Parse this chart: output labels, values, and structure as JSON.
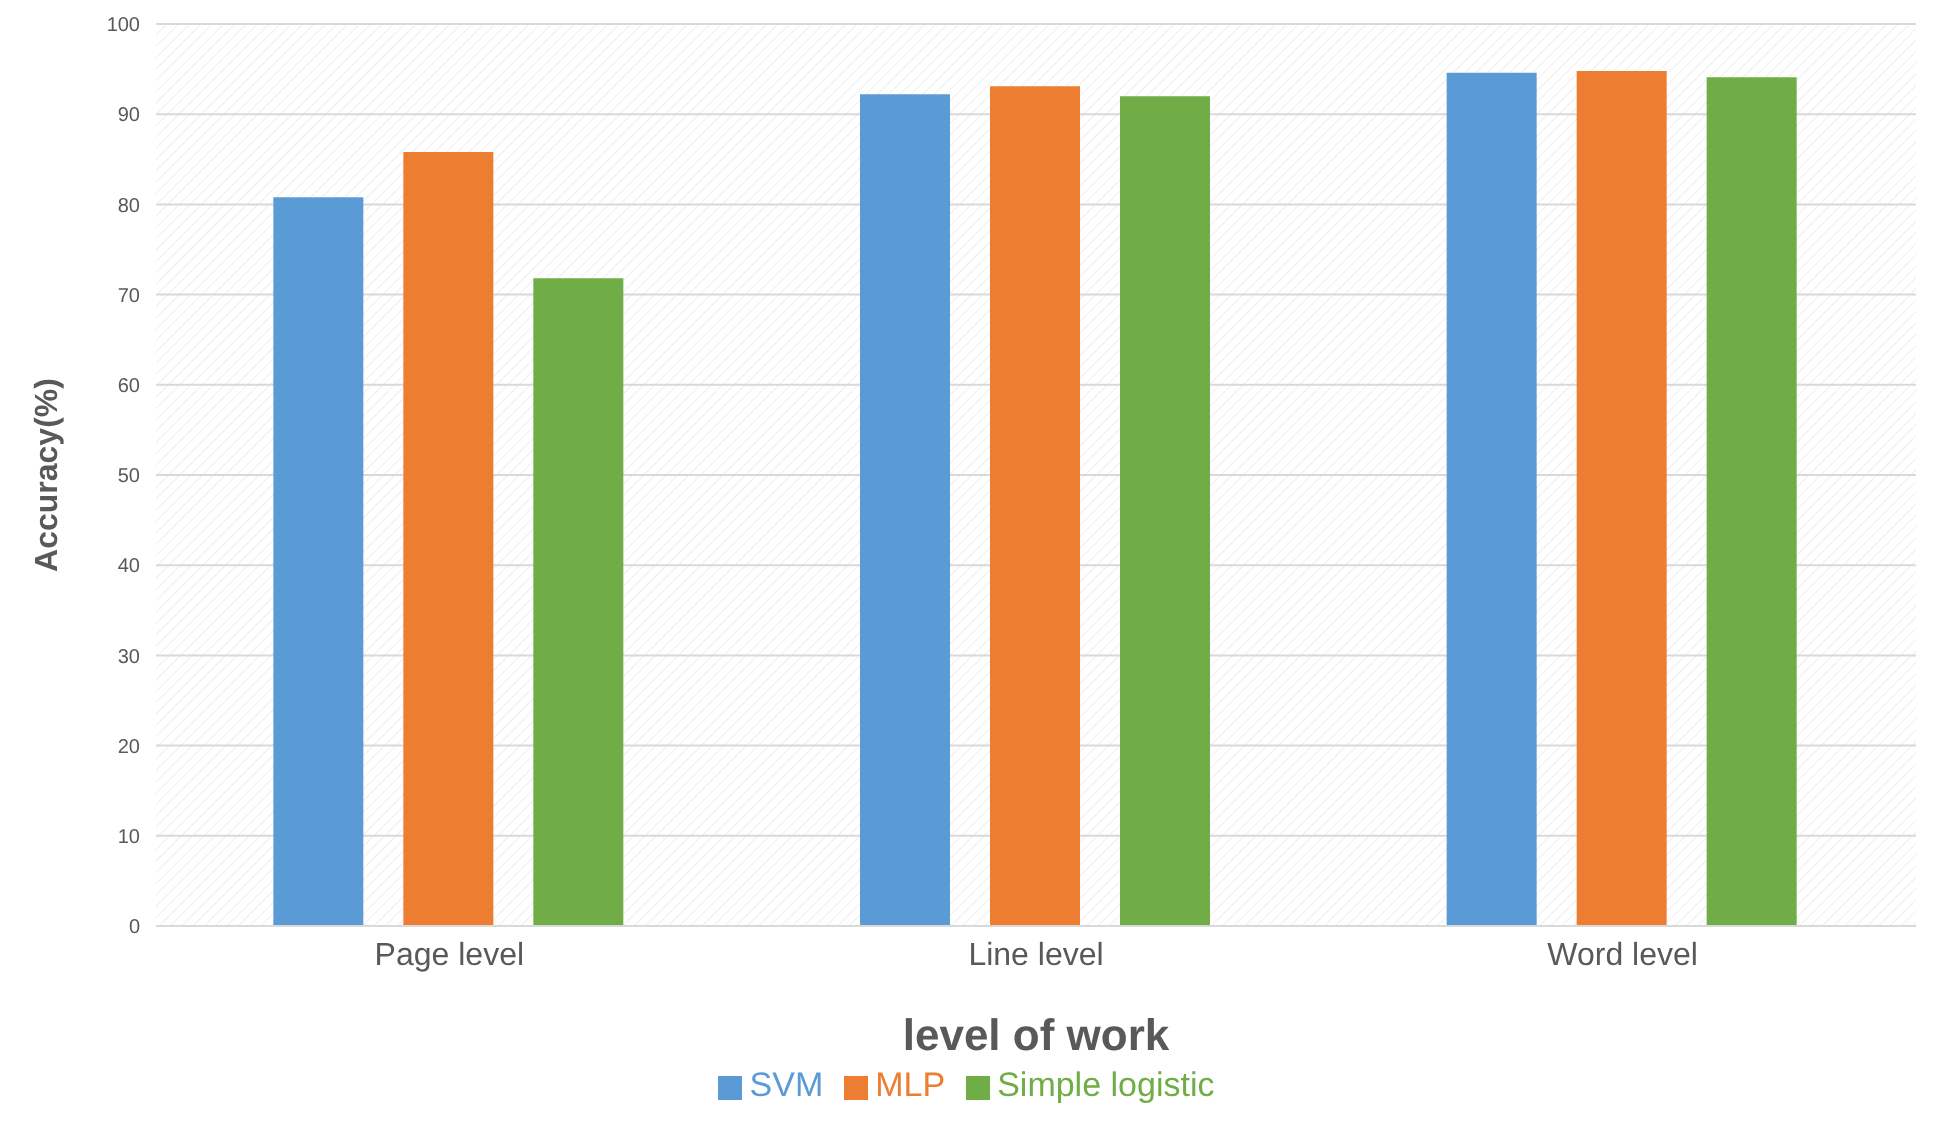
{
  "chart_data": {
    "type": "bar",
    "xlabel": "level of work",
    "ylabel": "Accuracy(%)",
    "categories": [
      "Page level",
      "Line level",
      "Word level"
    ],
    "series": [
      {
        "name": "SVM",
        "color": "#5b9bd5",
        "values": [
          80.8,
          92.2,
          94.6
        ]
      },
      {
        "name": "MLP",
        "color": "#ed7d31",
        "values": [
          85.8,
          93.1,
          94.8
        ]
      },
      {
        "name": "Simple logistic",
        "color": "#70ad47",
        "values": [
          71.8,
          92.0,
          94.1
        ]
      }
    ],
    "ylim": [
      0,
      100
    ],
    "yticks": [
      0,
      10,
      20,
      30,
      40,
      50,
      60,
      70,
      80,
      90,
      100
    ],
    "grid": true,
    "legend": "bottom"
  }
}
